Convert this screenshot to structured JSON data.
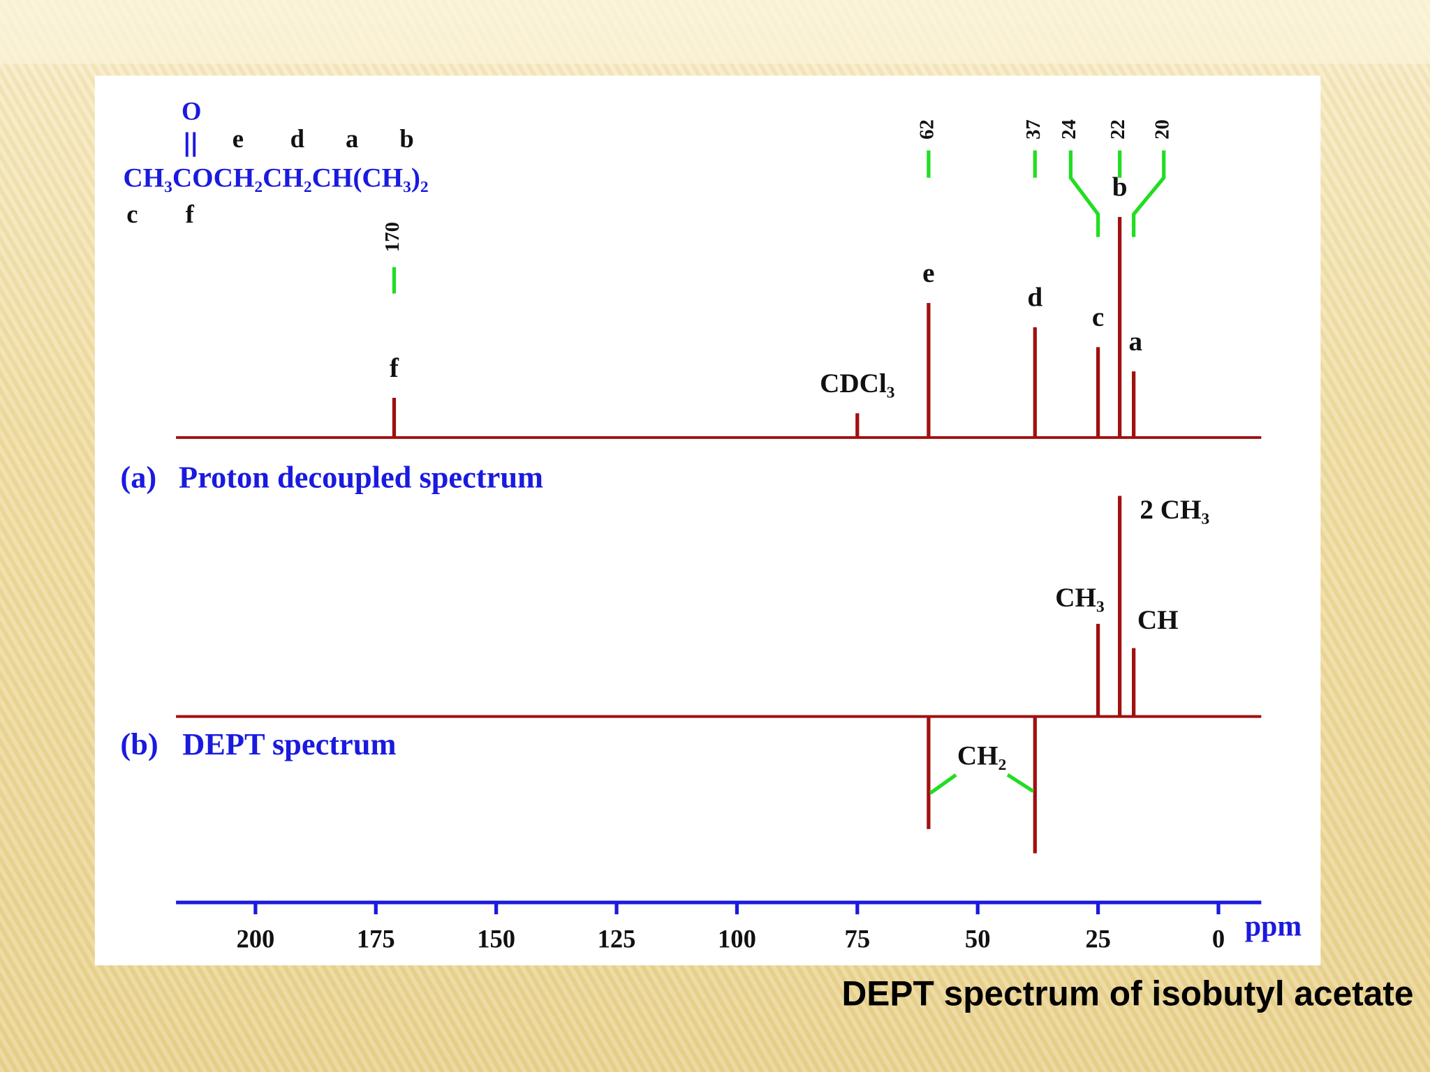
{
  "chart_data": {
    "type": "stem",
    "title": "DEPT spectrum of isobutyl acetate",
    "xlabel": "ppm",
    "xlim": [
      216.5,
      -8.9
    ],
    "xticks": [
      200,
      175,
      150,
      125,
      100,
      75,
      50,
      25,
      0
    ],
    "structure": {
      "oxygen": "O",
      "formula": "CH₃COCH₂CH₂CH(CH₃)₂",
      "letters_above": [
        "e",
        "d",
        "a",
        "b"
      ],
      "letters_below": [
        "c",
        "f"
      ]
    },
    "series": [
      {
        "label": "(a)",
        "name": "Proton decoupled spectrum",
        "color": "#a01010",
        "x": [
          171.2,
          75.0,
          60.2,
          38.1,
          25.0,
          20.5,
          17.6
        ],
        "values": [
          18,
          11,
          61,
          50,
          41,
          100,
          30
        ],
        "labels": [
          "f",
          "CDCl₃",
          "e",
          "d",
          "c",
          "b",
          "a"
        ],
        "shifts": [
          170,
          null,
          62,
          37,
          24,
          22,
          20
        ],
        "shift_color": "#22dd22"
      },
      {
        "label": "(b)",
        "name": "DEPT spectrum",
        "color": "#a01010",
        "x": [
          60.2,
          38.1,
          25.0,
          20.5,
          17.6
        ],
        "values": [
          -51,
          -62,
          42,
          100,
          31
        ],
        "labels": [
          "CH₂",
          null,
          "CH₃",
          "2 CH₃",
          "CH"
        ]
      }
    ]
  }
}
